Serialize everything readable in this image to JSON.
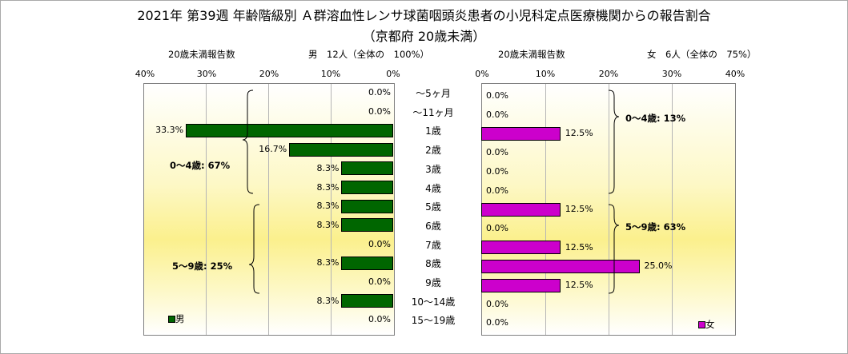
{
  "title": "2021年 第39週 年齢階級別 Ａ群溶血性レンサ球菌咽頭炎患者の小児科定点医療機関からの報告割合",
  "subtitle": "（京都府 20歳未満）",
  "chart_data": [
    {
      "type": "bar",
      "orientation": "horizontal-left",
      "header_left": "20歳未満報告数",
      "header_right": "男　12人（全体の　100%）",
      "series_name": "男",
      "color": "#006600",
      "categories": [
        "～5ヶ月",
        "～11ヶ月",
        "1歳",
        "2歳",
        "3歳",
        "4歳",
        "5歳",
        "6歳",
        "7歳",
        "8歳",
        "9歳",
        "10～14歳",
        "15～19歳"
      ],
      "values": [
        0.0,
        0.0,
        33.3,
        16.7,
        8.3,
        8.3,
        8.3,
        8.3,
        0.0,
        8.3,
        0.0,
        8.3,
        0.0
      ],
      "value_labels": [
        "0.0%",
        "0.0%",
        "33.3%",
        "16.7%",
        "8.3%",
        "8.3%",
        "8.3%",
        "8.3%",
        "0.0%",
        "8.3%",
        "0.0%",
        "8.3%",
        "0.0%"
      ],
      "xlim": [
        0,
        40
      ],
      "xticks": [
        "40%",
        "30%",
        "20%",
        "10%",
        "0%"
      ],
      "groups": [
        "0～4歳: 67%",
        "5～9歳: 25%"
      ]
    },
    {
      "type": "bar",
      "orientation": "horizontal-right",
      "header_left": "20歳未満報告数",
      "header_right": "女　6人（全体の　75%）",
      "series_name": "女",
      "color": "#cc00cc",
      "categories": [
        "～5ヶ月",
        "～11ヶ月",
        "1歳",
        "2歳",
        "3歳",
        "4歳",
        "5歳",
        "6歳",
        "7歳",
        "8歳",
        "9歳",
        "10～14歳",
        "15～19歳"
      ],
      "values": [
        0.0,
        0.0,
        12.5,
        0.0,
        0.0,
        0.0,
        12.5,
        0.0,
        12.5,
        25.0,
        12.5,
        0.0,
        0.0
      ],
      "value_labels": [
        "0.0%",
        "0.0%",
        "12.5%",
        "0.0%",
        "0.0%",
        "0.0%",
        "12.5%",
        "0.0%",
        "12.5%",
        "25.0%",
        "12.5%",
        "0.0%",
        "0.0%"
      ],
      "xlim": [
        0,
        40
      ],
      "xticks": [
        "0%",
        "10%",
        "20%",
        "30%",
        "40%"
      ],
      "groups": [
        "0～4歳: 13%",
        "5～9歳: 63%"
      ]
    }
  ]
}
